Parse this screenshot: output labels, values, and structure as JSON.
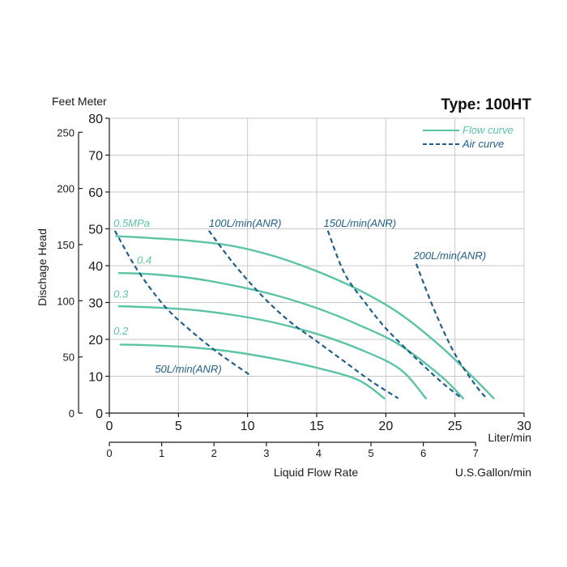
{
  "chart_data": {
    "type": "line",
    "title": "Type: 100HT",
    "xlabel": "Liquid Flow Rate",
    "ylabel": "Dischage Head",
    "y_units_label": "Feet Meter",
    "x_unit_primary": "Liter/min",
    "x_unit_secondary": "U.S.Gallon/min",
    "xlim": [
      0,
      30
    ],
    "ylim": [
      0,
      80
    ],
    "grid": true,
    "legend_position": "top-right",
    "legend": [
      {
        "name": "Flow curve",
        "style": "solid",
        "color": "#5cc4a6"
      },
      {
        "name": "Air curve",
        "style": "dashed",
        "color": "#1f5f8a"
      }
    ],
    "x_ticks_liter": [
      "0",
      "5",
      "10",
      "15",
      "20",
      "25",
      "30"
    ],
    "y_ticks_meter": [
      "0",
      "10",
      "20",
      "30",
      "40",
      "50",
      "60",
      "70",
      "80"
    ],
    "y_ticks_feet": [
      {
        "label": "0",
        "meter": 0
      },
      {
        "label": "50",
        "meter": 15.24
      },
      {
        "label": "100",
        "meter": 30.48
      },
      {
        "label": "150",
        "meter": 45.72
      },
      {
        "label": "200",
        "meter": 60.96
      },
      {
        "label": "250",
        "meter": 76.2
      }
    ],
    "x_ticks_gallon": [
      {
        "label": "0",
        "liter": 0
      },
      {
        "label": "1",
        "liter": 3.785
      },
      {
        "label": "2",
        "liter": 7.571
      },
      {
        "label": "3",
        "liter": 11.356
      },
      {
        "label": "4",
        "liter": 15.142
      },
      {
        "label": "5",
        "liter": 18.927
      },
      {
        "label": "6",
        "liter": 22.712
      },
      {
        "label": "7",
        "liter": 26.498
      }
    ],
    "flow_series": [
      {
        "name": "0.5MPa",
        "x": [
          0.5,
          3,
          6,
          9,
          12,
          15,
          18,
          21,
          24,
          26.5,
          27.8
        ],
        "y": [
          48,
          47.5,
          46.7,
          45.3,
          42.5,
          38.5,
          33.5,
          27,
          18,
          9,
          4
        ]
      },
      {
        "name": "0.4",
        "x": [
          0.7,
          3,
          6,
          9,
          12,
          15,
          18,
          21,
          24,
          25.6
        ],
        "y": [
          38,
          37.7,
          36.6,
          34.6,
          32,
          28.5,
          24,
          18.5,
          10,
          4
        ]
      },
      {
        "name": "0.3",
        "x": [
          0.7,
          3,
          6,
          9,
          12,
          15,
          18,
          21,
          22.9
        ],
        "y": [
          29,
          28.7,
          28,
          26.6,
          24.5,
          21.5,
          17.5,
          12,
          4
        ]
      },
      {
        "name": "0.2",
        "x": [
          0.8,
          3,
          6,
          9,
          12,
          15,
          18,
          19.9
        ],
        "y": [
          18.6,
          18.4,
          17.8,
          16.6,
          14.7,
          12.3,
          9,
          4
        ]
      }
    ],
    "air_series": [
      {
        "name": "50L/min(ANR)",
        "x": [
          0.4,
          2,
          4,
          6,
          8,
          10.3
        ],
        "y": [
          49.5,
          39,
          29,
          22,
          16,
          10
        ]
      },
      {
        "name": "100L/min(ANR)",
        "x": [
          7.2,
          9,
          11,
          13,
          15,
          17,
          19,
          20.9
        ],
        "y": [
          49.5,
          40.5,
          32,
          25,
          19.5,
          14,
          8.5,
          4
        ]
      },
      {
        "name": "150L/min(ANR)",
        "x": [
          15.8,
          17,
          18.5,
          20,
          22,
          24,
          25.5
        ],
        "y": [
          49.5,
          38,
          30,
          23,
          15.5,
          8.5,
          4
        ]
      },
      {
        "name": "200L/min(ANR)",
        "x": [
          22.2,
          23.5,
          25,
          26.5,
          27.3
        ],
        "y": [
          40.5,
          28,
          16,
          7.5,
          4
        ]
      }
    ],
    "annotations": [
      {
        "text": "0.5MPa",
        "x": 0.3,
        "y": 50.5,
        "color": "#5cc4a6"
      },
      {
        "text": "0.4",
        "x": 2.0,
        "y": 40.5,
        "color": "#5cc4a6"
      },
      {
        "text": "0.3",
        "x": 0.3,
        "y": 31.3,
        "color": "#5cc4a6"
      },
      {
        "text": "0.2",
        "x": 0.3,
        "y": 21.3,
        "color": "#5cc4a6"
      },
      {
        "text": "100L/min(ANR)",
        "x": 7.2,
        "y": 50.5,
        "color": "#1f5f8a"
      },
      {
        "text": "150L/min(ANR)",
        "x": 15.5,
        "y": 50.5,
        "color": "#1f5f8a"
      },
      {
        "text": "200L/min(ANR)",
        "x": 22.0,
        "y": 41.8,
        "color": "#1f5f8a"
      },
      {
        "text": "50L/min(ANR)",
        "x": 3.3,
        "y": 11.0,
        "color": "#1f5f8a"
      }
    ],
    "colors": {
      "flow": "#5cc4a6",
      "air": "#1f5f8a",
      "grid": "#c8c8c8",
      "axis": "#1a1a1a"
    }
  }
}
